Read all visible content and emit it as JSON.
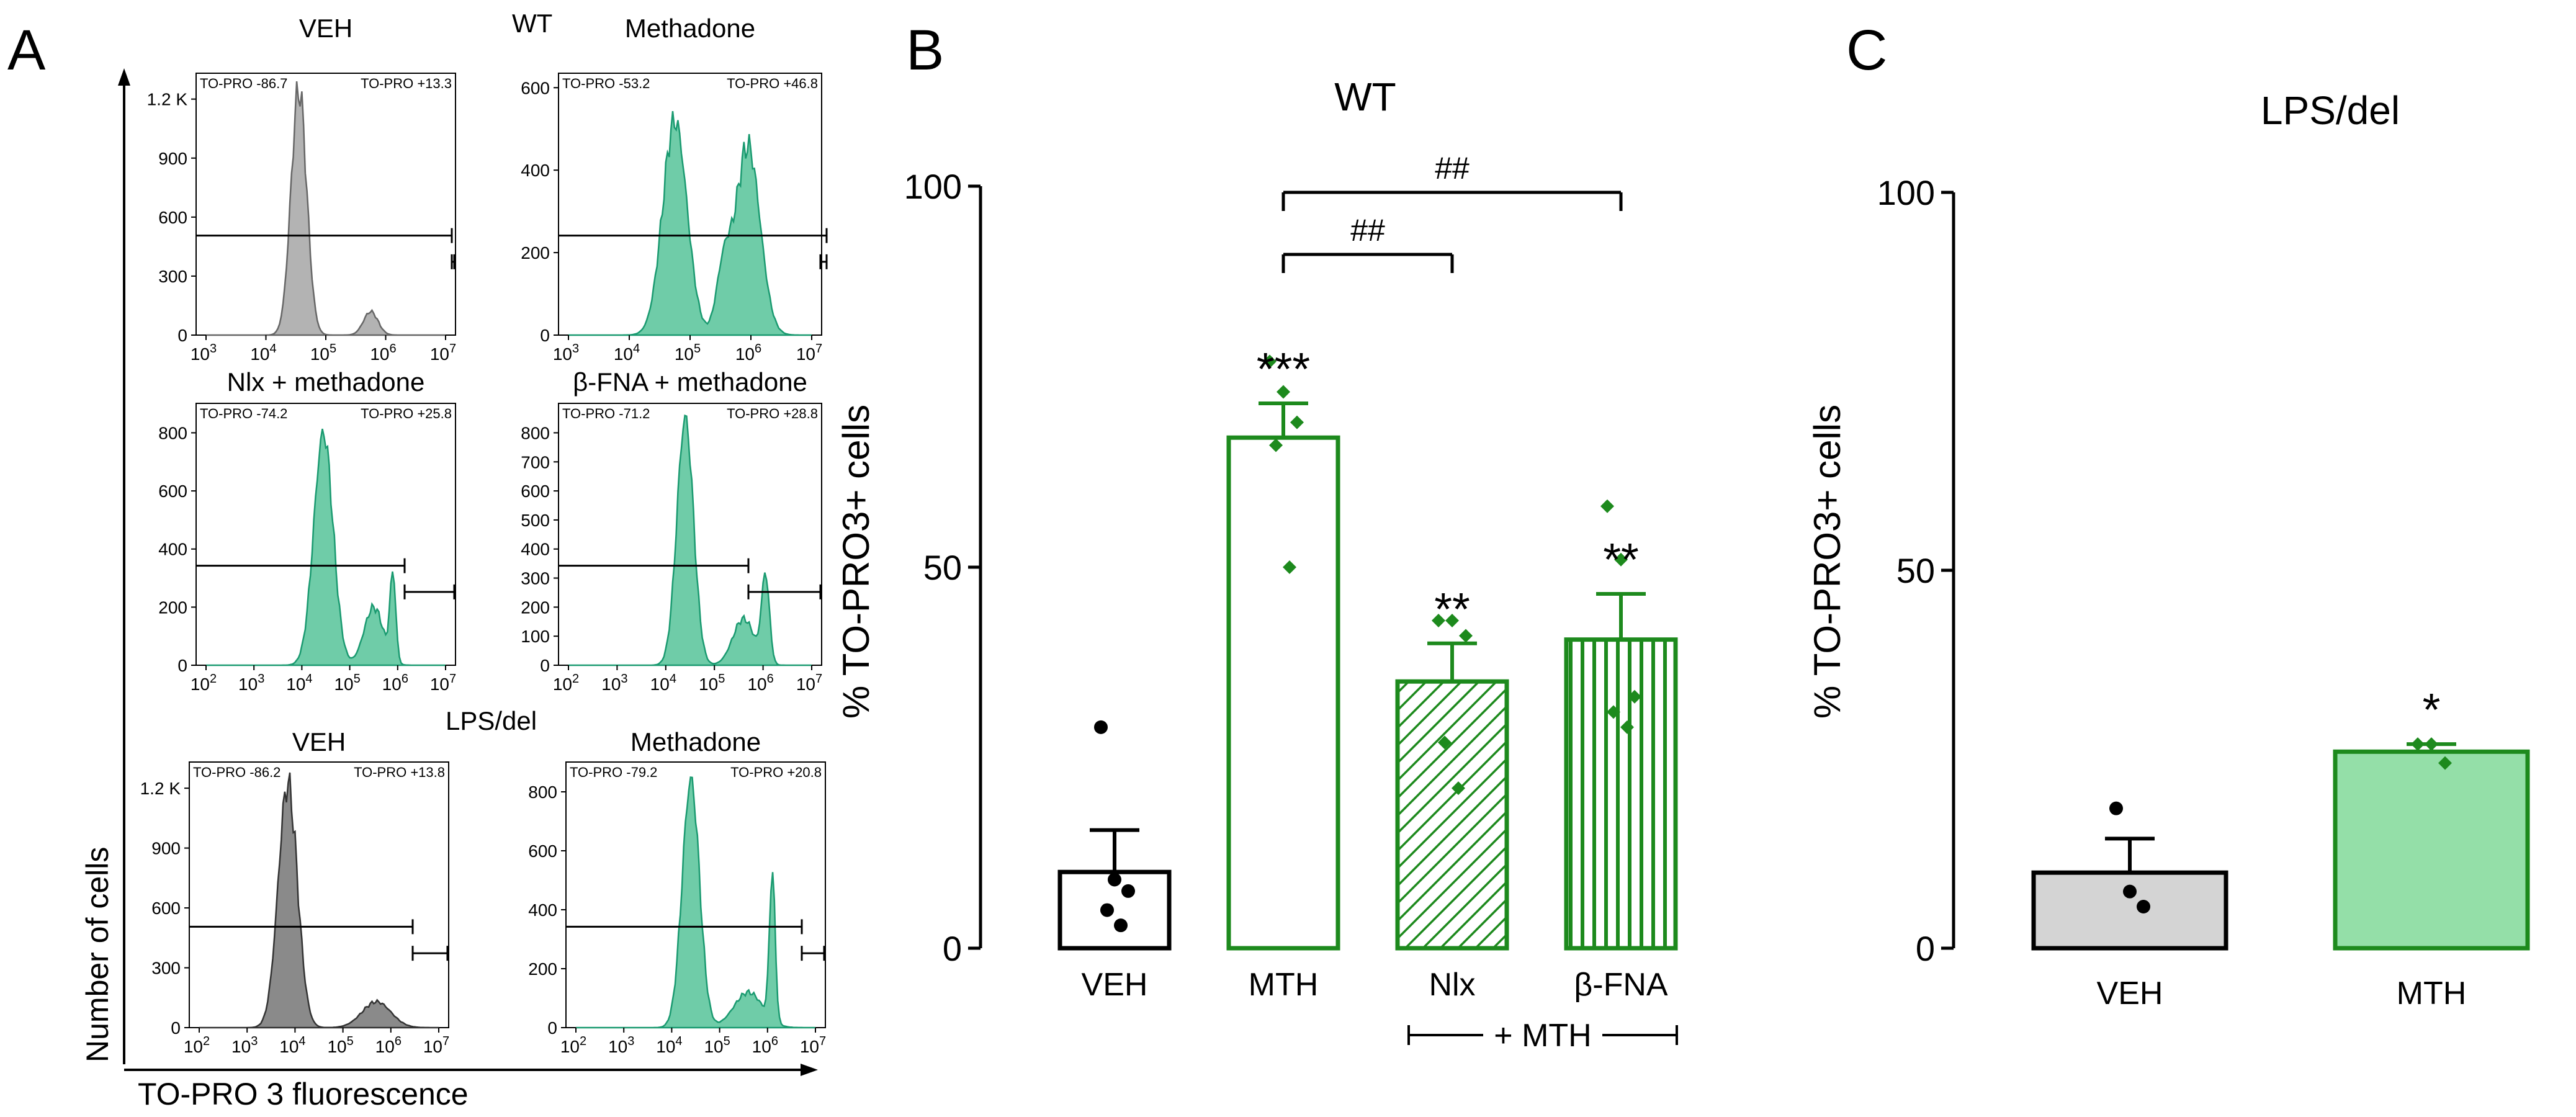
{
  "figure": {
    "panel_labels": {
      "a": "A",
      "b": "B",
      "c": "C"
    },
    "colors": {
      "green": "#1d8a1d",
      "teal_fill": "#6fcca8",
      "teal_line": "#1a9a70",
      "gray_fill": "#b3b3b3",
      "dark_gray_fill": "#8a8a8a",
      "gray_bar": "#d4d4d4",
      "light_green_bar": "#94dfa8",
      "black": "#000000"
    }
  },
  "panel_a": {
    "group_wt": "WT",
    "group_lps": "LPS/del",
    "y_axis_label": "Number of cells",
    "x_axis_label": "TO-PRO 3 fluorescence",
    "histograms": [
      {
        "key": "h1",
        "title": "VEH",
        "left_gate": "TO-PRO -86.7",
        "right_gate": "TO-PRO +13.3",
        "style": "gray",
        "y_ticks": [
          "0",
          "300",
          "600",
          "900",
          "1.2 K"
        ],
        "y_max": 1300,
        "x_ticks": [
          "3",
          "4",
          "5",
          "6",
          "7"
        ],
        "peaks": [
          [
            4.55,
            1250,
            0.13
          ],
          [
            5.75,
            120,
            0.12
          ]
        ]
      },
      {
        "key": "h2",
        "title": "Methadone",
        "left_gate": "TO-PRO -53.2",
        "right_gate": "TO-PRO +46.8",
        "style": "teal",
        "y_ticks": [
          "0",
          "200",
          "400",
          "600"
        ],
        "y_max": 620,
        "x_ticks": [
          "3",
          "4",
          "5",
          "6",
          "7"
        ],
        "peaks": [
          [
            4.75,
            520,
            0.2
          ],
          [
            5.95,
            460,
            0.2
          ],
          [
            5.55,
            150,
            0.12
          ]
        ]
      },
      {
        "key": "h3",
        "title": "Nlx + methadone",
        "left_gate": "TO-PRO -74.2",
        "right_gate": "TO-PRO +25.8",
        "style": "teal",
        "y_ticks": [
          "0",
          "200",
          "400",
          "600",
          "800"
        ],
        "y_max": 880,
        "x_ticks": [
          "2",
          "3",
          "4",
          "5",
          "6",
          "7"
        ],
        "peaks": [
          [
            4.45,
            800,
            0.2
          ],
          [
            5.5,
            200,
            0.2
          ],
          [
            5.9,
            300,
            0.06
          ]
        ]
      },
      {
        "key": "h4",
        "title": "β-FNA + methadone",
        "left_gate": "TO-PRO -71.2",
        "right_gate": "TO-PRO +28.8",
        "style": "teal",
        "y_ticks": [
          "0",
          "100",
          "200",
          "300",
          "400",
          "500",
          "600",
          "700",
          "800"
        ],
        "y_max": 880,
        "x_ticks": [
          "2",
          "3",
          "4",
          "5",
          "6",
          "7"
        ],
        "peaks": [
          [
            4.4,
            850,
            0.17
          ],
          [
            5.6,
            160,
            0.22
          ],
          [
            6.05,
            300,
            0.08
          ]
        ]
      },
      {
        "key": "h5",
        "title": "VEH",
        "left_gate": "TO-PRO -86.2",
        "right_gate": "TO-PRO +13.8",
        "style": "darkgray",
        "y_ticks": [
          "0",
          "300",
          "600",
          "900",
          "1.2 K"
        ],
        "y_max": 1300,
        "x_ticks": [
          "2",
          "3",
          "4",
          "5",
          "6",
          "7"
        ],
        "peaks": [
          [
            3.85,
            1220,
            0.2
          ],
          [
            5.7,
            130,
            0.3
          ]
        ]
      },
      {
        "key": "h6",
        "title": "Methadone",
        "left_gate": "TO-PRO -79.2",
        "right_gate": "TO-PRO +20.8",
        "style": "teal",
        "y_ticks": [
          "0",
          "200",
          "400",
          "600",
          "800"
        ],
        "y_max": 880,
        "x_ticks": [
          "2",
          "3",
          "4",
          "5",
          "6",
          "7"
        ],
        "peaks": [
          [
            4.4,
            840,
            0.18
          ],
          [
            5.6,
            120,
            0.3
          ],
          [
            6.1,
            500,
            0.06
          ]
        ]
      }
    ]
  },
  "chart_data": [
    {
      "type": "bar",
      "panel": "B",
      "title": "WT",
      "ylabel": "% TO-PRO3+ cells",
      "ylim": [
        0,
        100
      ],
      "y_ticks": [
        "0",
        "50",
        "100"
      ],
      "categories": [
        "VEH",
        "MTH",
        "Nlx",
        "β-FNA"
      ],
      "group_bracket_label": "+ MTH",
      "values": [
        10,
        67,
        35,
        40.5
      ],
      "errors": [
        5.5,
        4.5,
        5,
        6
      ],
      "fills": [
        "white",
        "white",
        "diagonal-hatch",
        "vertical-hatch"
      ],
      "significance": [
        "",
        "***",
        "**",
        "**"
      ],
      "comparisons": [
        {
          "from": "MTH",
          "to": "Nlx",
          "label": "##"
        },
        {
          "from": "MTH",
          "to": "β-FNA",
          "label": "##"
        }
      ],
      "points": [
        [
          29,
          9,
          7.5,
          5,
          3
        ],
        [
          77,
          73,
          69,
          66,
          50
        ],
        [
          43,
          43,
          41,
          27,
          21
        ],
        [
          58,
          51,
          33,
          31,
          29
        ]
      ]
    },
    {
      "type": "bar",
      "panel": "C",
      "title": "LPS/del",
      "ylabel": "% TO-PRO3+ cells",
      "ylim": [
        0,
        100
      ],
      "y_ticks": [
        "0",
        "50",
        "100"
      ],
      "categories": [
        "VEH",
        "MTH"
      ],
      "values": [
        10,
        26
      ],
      "errors": [
        4.5,
        1
      ],
      "fills": [
        "gray",
        "light-green"
      ],
      "significance": [
        "",
        "*"
      ],
      "points": [
        [
          18.5,
          7.5,
          5.5
        ],
        [
          27,
          27,
          24.5
        ]
      ]
    }
  ]
}
